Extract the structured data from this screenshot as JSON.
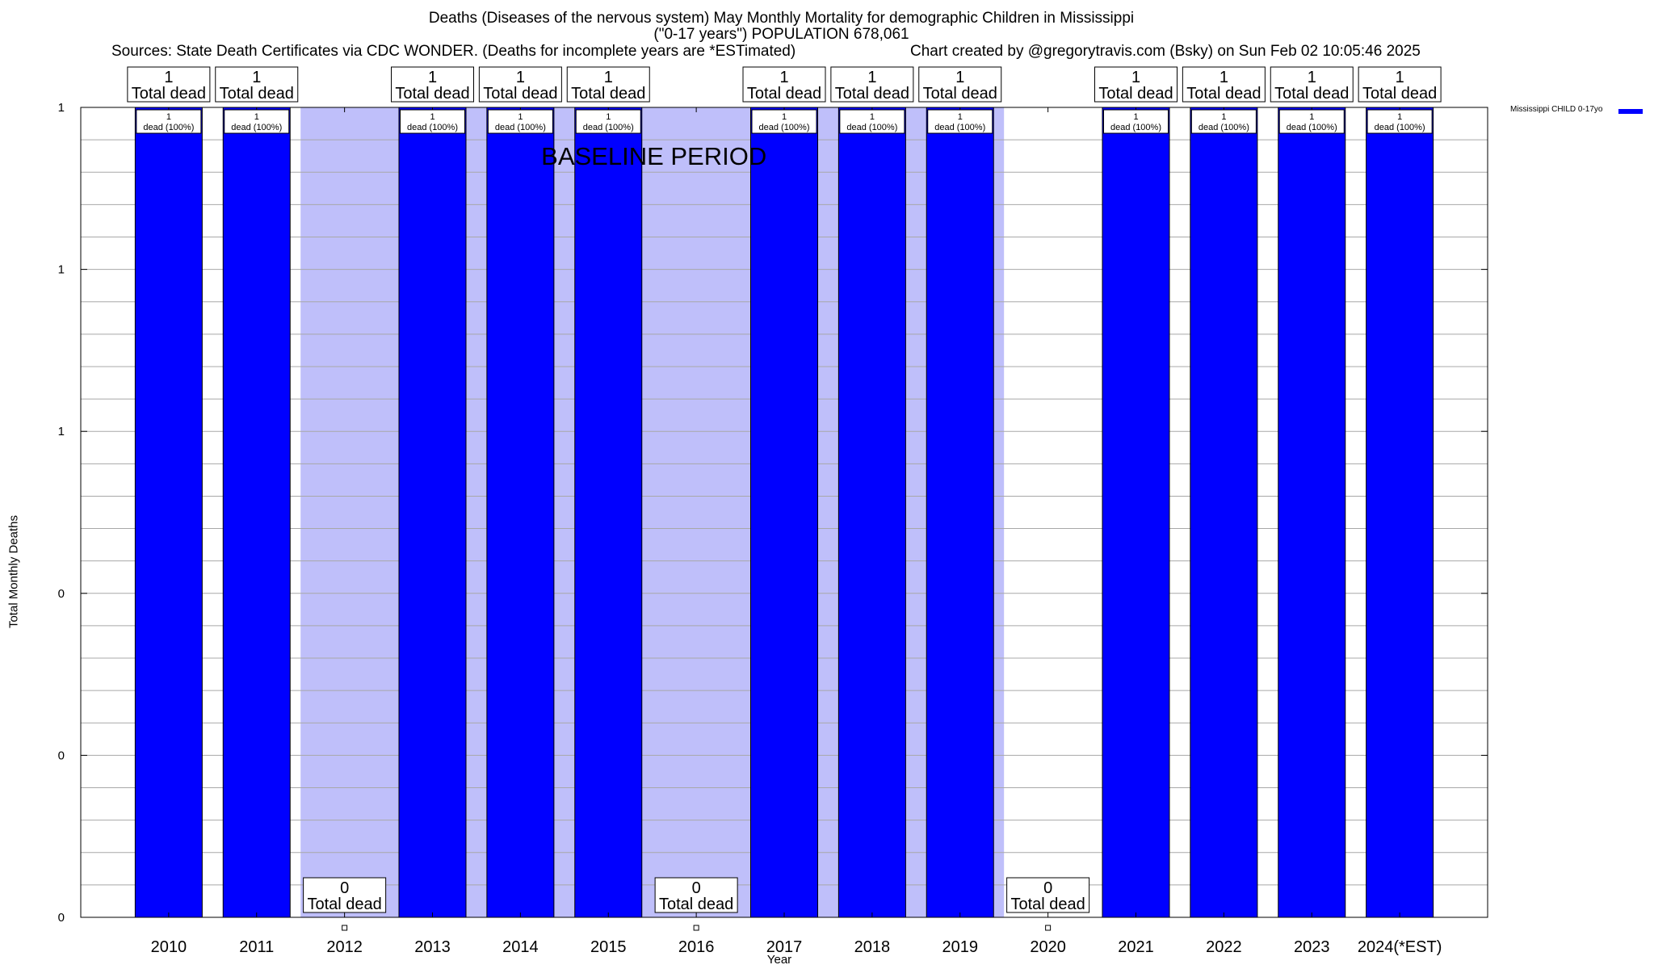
{
  "header": {
    "title_line1": "Deaths (Diseases of the nervous system) May Monthly Mortality for demographic Children in Mississippi",
    "title_line2": "(\"0-17 years\") POPULATION 678,061",
    "sources": "Sources: State Death Certificates via CDC WONDER. (Deaths for incomplete years are *ESTimated)",
    "credit": "Chart created by @gregorytravis.com (Bsky) on Sun Feb 02 10:05:46 2025"
  },
  "chart_data": {
    "type": "bar",
    "categories": [
      "2010",
      "2011",
      "2012",
      "2013",
      "2014",
      "2015",
      "2016",
      "2017",
      "2018",
      "2019",
      "2020",
      "2021",
      "2022",
      "2023",
      "2024(*EST)"
    ],
    "series": [
      {
        "name": "Mississippi CHILD 0-17yo",
        "values": [
          1,
          1,
          0,
          1,
          1,
          1,
          0,
          1,
          1,
          1,
          0,
          1,
          1,
          1,
          1
        ],
        "color": "#0000ff"
      }
    ],
    "bar_labels": [
      "1 Total dead",
      "1 Total dead",
      "0 Total dead",
      "1 Total dead",
      "1 Total dead",
      "1 Total dead",
      "0 Total dead",
      "1 Total dead",
      "1 Total dead",
      "1 Total dead",
      "0 Total dead",
      "1 Total dead",
      "1 Total dead",
      "1 Total dead",
      "1 Total dead"
    ],
    "inner_labels": [
      "1 dead (100%)",
      "1 dead (100%)",
      "",
      "1 dead (100%)",
      "1 dead (100%)",
      "1 dead (100%)",
      "",
      "1 dead (100%)",
      "1 dead (100%)",
      "1 dead (100%)",
      "",
      "1 dead (100%)",
      "1 dead (100%)",
      "1 dead (100%)",
      "1 dead (100%)"
    ],
    "baseline_period": {
      "label": "BASELINE PERIOD",
      "from": "2012",
      "to": "2019",
      "color": "#bfbffa"
    },
    "xlabel": "Year",
    "ylabel": "Total Monthly Deaths",
    "ylim": [
      0,
      1
    ],
    "ytick_labels": [
      "0",
      "0",
      "0",
      "1",
      "1",
      "1"
    ],
    "grid": true,
    "legend_position": "top-right"
  }
}
